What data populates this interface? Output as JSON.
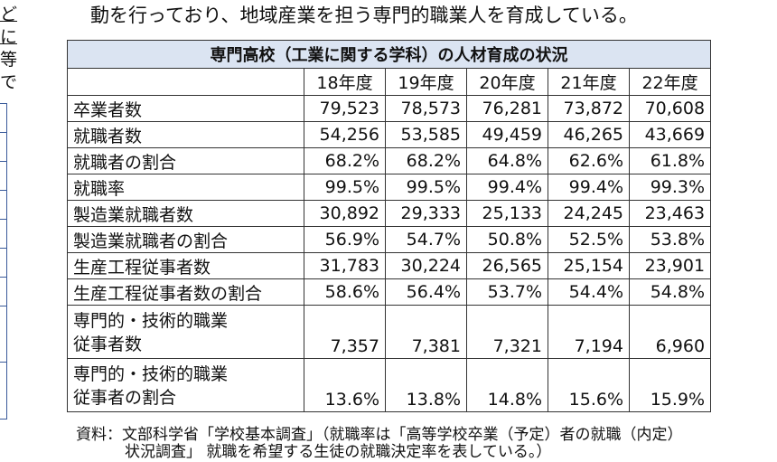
{
  "left_fragment": {
    "line1": "どに",
    "line2": "等で"
  },
  "intro_text": "動を行っており、地域産業を担う専門的職業人を育成している。",
  "table": {
    "title": "専門高校（工業に関する学科）の人材育成の状況",
    "years": [
      "18年度",
      "19年度",
      "20年度",
      "21年度",
      "22年度"
    ],
    "rows": [
      {
        "label": [
          "卒業者数"
        ],
        "values": [
          "79,523",
          "78,573",
          "76,281",
          "73,872",
          "70,608"
        ]
      },
      {
        "label": [
          "就職者数"
        ],
        "values": [
          "54,256",
          "53,585",
          "49,459",
          "46,265",
          "43,669"
        ]
      },
      {
        "label": [
          "就職者の割合"
        ],
        "values": [
          "68.2%",
          "68.2%",
          "64.8%",
          "62.6%",
          "61.8%"
        ]
      },
      {
        "label": [
          "就職率"
        ],
        "values": [
          "99.5%",
          "99.5%",
          "99.4%",
          "99.4%",
          "99.3%"
        ]
      },
      {
        "label": [
          "製造業就職者数"
        ],
        "values": [
          "30,892",
          "29,333",
          "25,133",
          "24,245",
          "23,463"
        ]
      },
      {
        "label": [
          "製造業就職者の割合"
        ],
        "values": [
          "56.9%",
          "54.7%",
          "50.8%",
          "52.5%",
          "53.8%"
        ]
      },
      {
        "label": [
          "生産工程従事者数"
        ],
        "values": [
          "31,783",
          "30,224",
          "26,565",
          "25,154",
          "23,901"
        ]
      },
      {
        "label": [
          "生産工程従事者数の割合"
        ],
        "values": [
          "58.6%",
          "56.4%",
          "53.7%",
          "54.4%",
          "54.8%"
        ]
      },
      {
        "label": [
          "専門的・技術的職業",
          "従事者数"
        ],
        "values": [
          "7,357",
          "7,381",
          "7,321",
          "7,194",
          "6,960"
        ]
      },
      {
        "label": [
          "専門的・技術的職業",
          "従事者の割合"
        ],
        "values": [
          "13.6%",
          "13.8%",
          "14.8%",
          "15.6%",
          "15.9%"
        ]
      }
    ]
  },
  "source_line1": "資料：文部科学省「学校基本調査」（就職率は「高等学校卒業（予定）者の就職（内定）",
  "source_line2": "状況調査」 就職を希望する生徒の就職決定率を表している。）"
}
